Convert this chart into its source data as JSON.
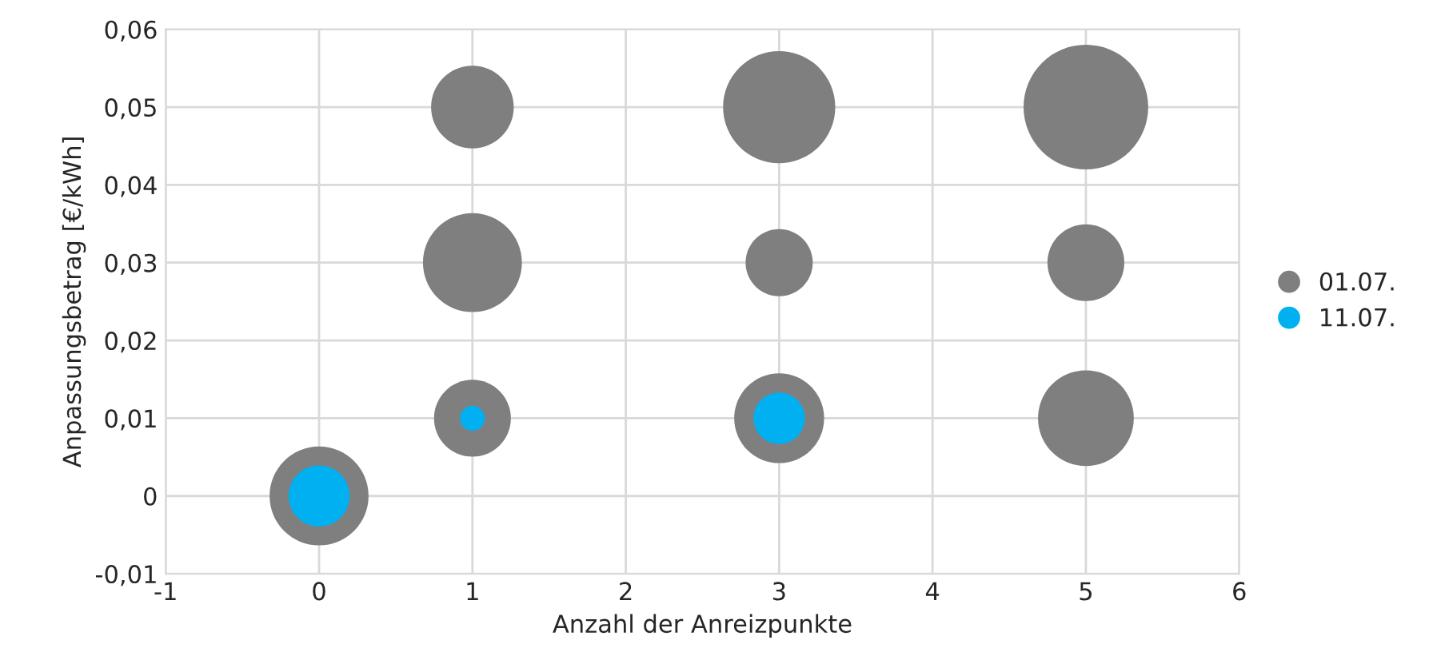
{
  "chart_data": {
    "type": "bubble",
    "xlabel": "Anzahl der Anreizpunkte",
    "ylabel": "Anpassungsbetrag [€/kWh]",
    "series": [
      {
        "name": "01.07.",
        "color": "#7f7f7f",
        "x": [
          0,
          1,
          3,
          5,
          1,
          3,
          5,
          1,
          3,
          5
        ],
        "values": [
          0,
          0.05,
          0.05,
          0.05,
          0.03,
          0.03,
          0.03,
          0.01,
          0.01,
          0.01
        ],
        "sizes": [
          0.63,
          0.44,
          0.81,
          1,
          0.63,
          0.29,
          0.38,
          0.38,
          0.52,
          0.59
        ]
      },
      {
        "name": "11.07.",
        "color": "#00b0f0",
        "x": [
          0,
          1,
          3
        ],
        "values": [
          0,
          0.01,
          0.01
        ],
        "sizes": [
          0.24,
          0.04,
          0.17
        ]
      }
    ],
    "xlim": [
      -1,
      6
    ],
    "xticks": [
      -1,
      0,
      1,
      2,
      3,
      4,
      5,
      6
    ],
    "ylim": [
      -0.01,
      0.06
    ],
    "yticks": [
      {
        "value": -0.01,
        "label": "-0,01"
      },
      {
        "value": 0,
        "label": "0"
      },
      {
        "value": 0.01,
        "label": "0,01"
      },
      {
        "value": 0.02,
        "label": "0,02"
      },
      {
        "value": 0.03,
        "label": "0,03"
      },
      {
        "value": 0.04,
        "label": "0,04"
      },
      {
        "value": 0.05,
        "label": "0,05"
      },
      {
        "value": 0.06,
        "label": "0,06"
      }
    ],
    "grid": true,
    "legend": "right"
  }
}
